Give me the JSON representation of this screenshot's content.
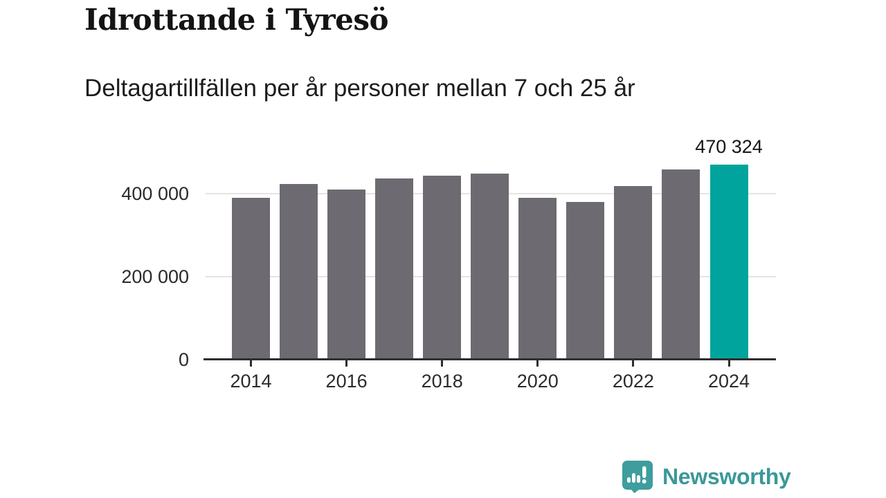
{
  "header": {
    "title": "Idrottande i Tyresö",
    "subtitle": "Deltagartillfällen per år personer mellan 7 och 25 år"
  },
  "chart_data": {
    "type": "bar",
    "title": "Idrottande i Tyresö",
    "subtitle": "Deltagartillfällen per år personer mellan 7 och 25 år",
    "categories": [
      "2014",
      "2015",
      "2016",
      "2017",
      "2018",
      "2019",
      "2020",
      "2021",
      "2022",
      "2023",
      "2024"
    ],
    "values": [
      390000,
      424000,
      411000,
      437000,
      445000,
      450000,
      391000,
      381000,
      419000,
      459000,
      470324
    ],
    "highlight_index": 10,
    "highlight_label": "470 324",
    "bar_color": "#6d6b71",
    "highlight_color": "#00a49c",
    "yticks": [
      0,
      200000,
      400000
    ],
    "ytick_labels": [
      "0",
      "200 000",
      "400 000"
    ],
    "xtick_indices": [
      0,
      2,
      4,
      6,
      8,
      10
    ],
    "xtick_labels": [
      "2014",
      "2016",
      "2018",
      "2020",
      "2022",
      "2024"
    ],
    "ylim": [
      0,
      551000
    ],
    "grid": true,
    "legend": "none",
    "xlabel": "",
    "ylabel": ""
  },
  "footer": {
    "brand": "Newsworthy",
    "logo_icon": "newsworthy-speech-bubble-chart-icon",
    "brand_color": "#3a9899"
  }
}
